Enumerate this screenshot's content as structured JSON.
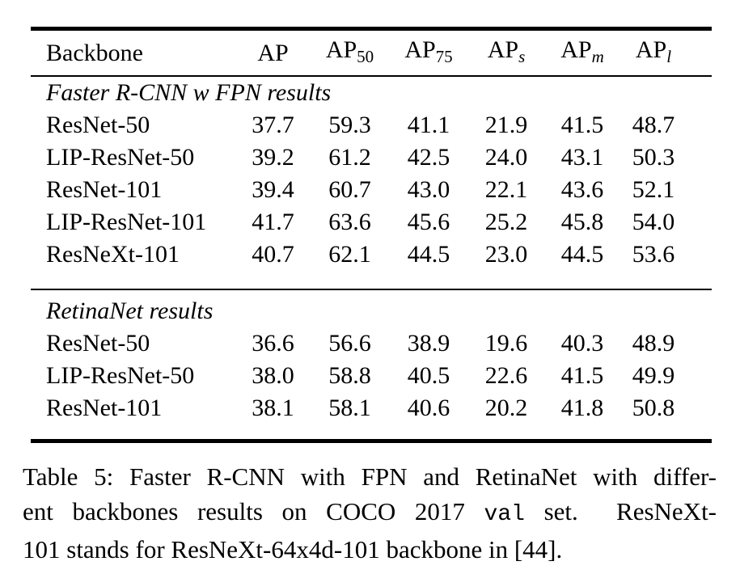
{
  "colors": {
    "text": "#000000",
    "background": "#ffffff",
    "rule": "#000000"
  },
  "table": {
    "columns": [
      {
        "main": "Backbone",
        "sub": ""
      },
      {
        "main": "AP",
        "sub": ""
      },
      {
        "main": "AP",
        "sub": "50"
      },
      {
        "main": "AP",
        "sub": "75"
      },
      {
        "main": "AP",
        "sub": "s"
      },
      {
        "main": "AP",
        "sub": "m"
      },
      {
        "main": "AP",
        "sub": "l"
      }
    ],
    "sections": [
      {
        "header": "Faster R-CNN w FPN results",
        "rows": [
          {
            "backbone": "ResNet-50",
            "values": [
              "37.7",
              "59.3",
              "41.1",
              "21.9",
              "41.5",
              "48.7"
            ]
          },
          {
            "backbone": "LIP-ResNet-50",
            "values": [
              "39.2",
              "61.2",
              "42.5",
              "24.0",
              "43.1",
              "50.3"
            ]
          },
          {
            "backbone": "ResNet-101",
            "values": [
              "39.4",
              "60.7",
              "43.0",
              "22.1",
              "43.6",
              "52.1"
            ]
          },
          {
            "backbone": "LIP-ResNet-101",
            "values": [
              "41.7",
              "63.6",
              "45.6",
              "25.2",
              "45.8",
              "54.0"
            ]
          },
          {
            "backbone": "ResNeXt-101",
            "values": [
              "40.7",
              "62.1",
              "44.5",
              "23.0",
              "44.5",
              "53.6"
            ]
          }
        ]
      },
      {
        "header": "RetinaNet results",
        "rows": [
          {
            "backbone": "ResNet-50",
            "values": [
              "36.6",
              "56.6",
              "38.9",
              "19.6",
              "40.3",
              "48.9"
            ]
          },
          {
            "backbone": "LIP-ResNet-50",
            "values": [
              "38.0",
              "58.8",
              "40.5",
              "22.6",
              "41.5",
              "49.9"
            ]
          },
          {
            "backbone": "ResNet-101",
            "values": [
              "38.1",
              "58.1",
              "40.6",
              "20.2",
              "41.8",
              "50.8"
            ]
          }
        ]
      }
    ]
  },
  "caption": {
    "line1": "Table 5: Faster R-CNN with FPN and RetinaNet with differ-",
    "line2_pre": "ent backbones results on COCO 2017 ",
    "line2_mono": "val",
    "line2_post": " set.  ResNeXt-",
    "line3": "101 stands for ResNeXt-64x4d-101 backbone in [44]."
  }
}
